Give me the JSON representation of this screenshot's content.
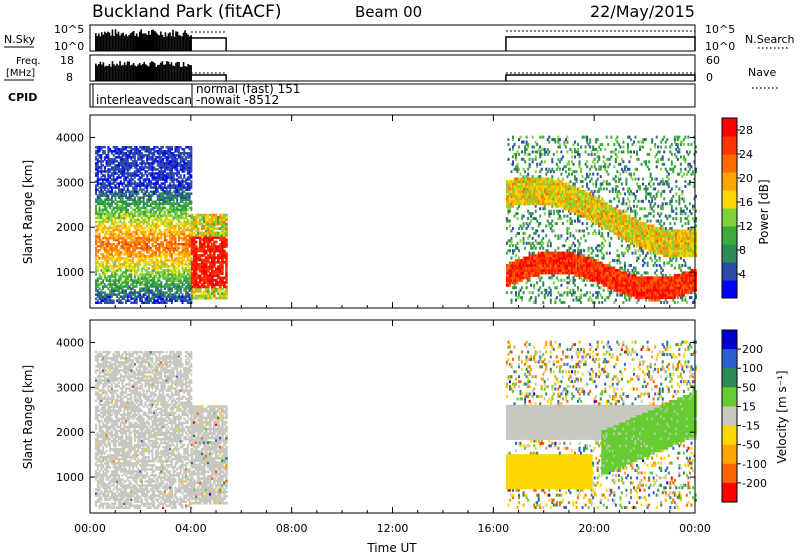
{
  "header": {
    "site": "Buckland Park (fitACF)",
    "beam": "Beam 00",
    "date": "22/May/2015"
  },
  "summary_panels": {
    "nsky": {
      "label": "N.Sky",
      "ticks": [
        "10^5",
        "10^0"
      ]
    },
    "nsearch": {
      "label": "N.Search",
      "ticks": [
        "10^5",
        "10^0"
      ]
    },
    "freq": {
      "label_line1": "Freq.",
      "label_line2": "[MHz]",
      "ticks": [
        "18",
        "8"
      ]
    },
    "nave": {
      "label": "Nave",
      "ticks": [
        "60",
        "0"
      ]
    },
    "cpid": {
      "label": "CPID",
      "segment1": "interleavedscan",
      "segment2_line1": "normal (fast) 151",
      "segment2_line2": "-nowait -8512"
    }
  },
  "colors": {
    "power_scale": [
      "#0000ff",
      "#2d4aa8",
      "#2e8b57",
      "#3caa3c",
      "#7fd23c",
      "#ffd700",
      "#ffa500",
      "#ff6a00",
      "#ff3300",
      "#ff0000"
    ],
    "velocity_scale": [
      "#0000cc",
      "#2a5fd0",
      "#2e8b57",
      "#66cc33",
      "#c8c8c0",
      "#ffd700",
      "#ffa500",
      "#ff6600",
      "#ff0000"
    ]
  },
  "chart_data": [
    {
      "type": "heatmap",
      "panel": "power",
      "ylabel": "Slant Range [km]",
      "xlabel": "",
      "y_ticks": [
        "4000",
        "3000",
        "2000",
        "1000"
      ],
      "ylim": [
        200,
        4500
      ],
      "xlim": [
        0,
        24
      ],
      "colorbar": {
        "label": "Power [dB]",
        "ticks": [
          "28",
          "24",
          "20",
          "16",
          "12",
          "8",
          "4"
        ],
        "range": [
          0,
          30
        ]
      },
      "data_blocks": [
        {
          "t_start": 0.2,
          "t_end": 4.0,
          "r_start": 300,
          "r_end": 3800,
          "peak_db": 20
        },
        {
          "t_start": 4.0,
          "t_end": 5.4,
          "r_start": 400,
          "r_end": 2300,
          "peak_db": 30
        },
        {
          "t_start": 16.5,
          "t_end": 24.0,
          "r_start": 300,
          "r_end": 4000,
          "peak_db": 30
        }
      ]
    },
    {
      "type": "heatmap",
      "panel": "velocity",
      "ylabel": "Slant Range [km]",
      "xlabel": "Time UT",
      "x_ticks": [
        "00:00",
        "04:00",
        "08:00",
        "12:00",
        "16:00",
        "20:00",
        "00:00"
      ],
      "y_ticks": [
        "4000",
        "3000",
        "2000",
        "1000"
      ],
      "ylim": [
        200,
        4500
      ],
      "xlim": [
        0,
        24
      ],
      "colorbar": {
        "label": "Velocity [m s⁻¹]",
        "ticks": [
          "200",
          "100",
          "50",
          "15",
          "-15",
          "-50",
          "-100",
          "-200"
        ],
        "range": [
          -250,
          250
        ]
      },
      "data_blocks": [
        {
          "t_start": 0.2,
          "t_end": 4.0,
          "r_start": 300,
          "r_end": 3800,
          "velocity": 0
        },
        {
          "t_start": 4.0,
          "t_end": 5.4,
          "r_start": 400,
          "r_end": 2600,
          "velocity": 0
        },
        {
          "t_start": 16.5,
          "t_end": 24.0,
          "r_start": 300,
          "r_end": 4000,
          "velocity": 60
        }
      ]
    }
  ]
}
